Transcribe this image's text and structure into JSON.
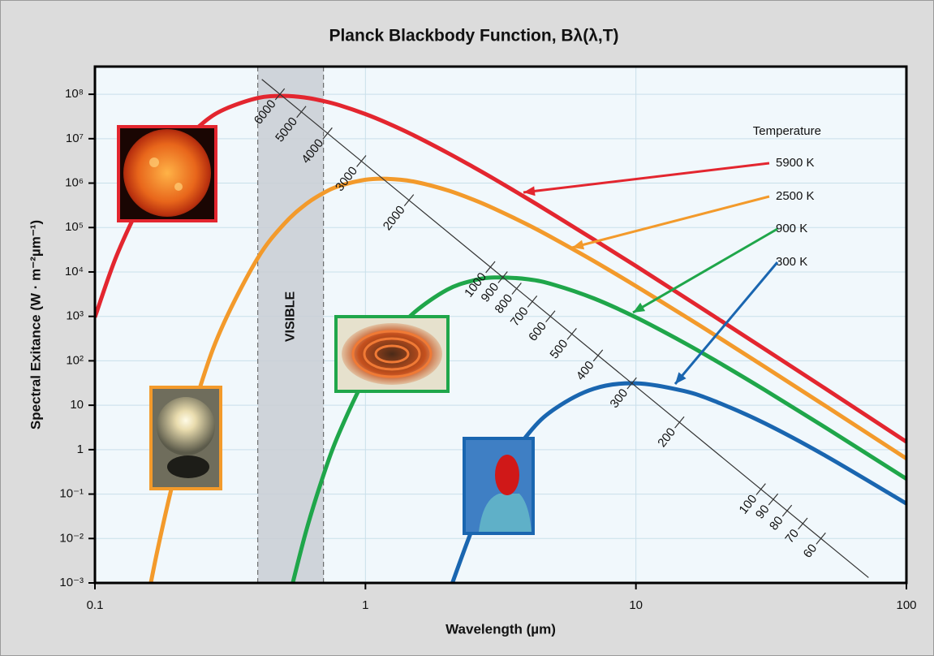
{
  "chart_data": {
    "type": "line",
    "title": "Planck Blackbody Function, Bλ(λ,T)",
    "x_label": "Wavelength (µm)",
    "y_label": "Spectral Exitance (W · m⁻²µm⁻¹)",
    "x_scale": "log",
    "y_scale": "log",
    "grid": true,
    "xlim": [
      0.1,
      100
    ],
    "ylim": [
      0.001,
      420000000
    ],
    "xticks": [
      0.1,
      1,
      10,
      100
    ],
    "yticks": [
      {
        "value": 100000000,
        "label": "10⁸"
      },
      {
        "value": 10000000,
        "label": "10⁷"
      },
      {
        "value": 1000000,
        "label": "10⁶"
      },
      {
        "value": 100000,
        "label": "10⁵"
      },
      {
        "value": 10000,
        "label": "10⁴"
      },
      {
        "value": 1000,
        "label": "10³"
      },
      {
        "value": 100,
        "label": "10²"
      },
      10,
      1,
      {
        "value": 0.1,
        "label": "10⁻¹"
      },
      {
        "value": 0.01,
        "label": "10⁻²"
      },
      {
        "value": 0.001,
        "label": "10⁻³"
      }
    ],
    "legend_title": "Temperature",
    "x": [
      0.1,
      0.12,
      0.15,
      0.17,
      0.2,
      0.25,
      0.3,
      0.4,
      0.5,
      0.6,
      0.7,
      0.8,
      1,
      1.2,
      1.5,
      2,
      2.5,
      3,
      4,
      5,
      7,
      10,
      15,
      20,
      30,
      50,
      100
    ],
    "series": [
      {
        "name": "5900 K",
        "color": "#e3262f",
        "values": [
          960,
          22500,
          427000,
          1550000,
          5940000,
          22200000,
          45400000,
          82400000,
          91900000,
          84100000,
          70400000,
          56900000,
          35800000,
          22700000,
          12100000,
          4900000,
          2320000,
          1230000,
          435000,
          190000,
          53400,
          13600,
          2790,
          901,
          182,
          24,
          1.5
        ]
      },
      {
        "name": "2500 K",
        "color": "#f39a2b",
        "values": [
          null,
          null,
          0.000107,
          0.0052,
          0.37,
          38.5,
          718,
          20600,
          120000,
          329000,
          599000,
          859000,
          1190000,
          1250000,
          1090000,
          697000,
          426000,
          265000,
          114000,
          55400,
          17500,
          4810,
          1050,
          351,
          72.8,
          9.8,
          0.63
        ]
      },
      {
        "name": "900 K",
        "color": "#1fa64a",
        "values": [
          null,
          null,
          null,
          null,
          null,
          null,
          null,
          null,
          0.00016,
          0.0129,
          0.27,
          2.39,
          42.7,
          246,
          1160,
          3950,
          6410,
          7500,
          6840,
          5100,
          2530,
          950,
          259,
          95.5,
          21.9,
          3.2,
          0.22
        ]
      },
      {
        "name": "300 K",
        "color": "#1a66b0",
        "values": [
          null,
          null,
          null,
          null,
          null,
          null,
          null,
          null,
          null,
          null,
          null,
          null,
          null,
          null,
          null,
          0.00045,
          0.018,
          0.18,
          2.27,
          8.2,
          23.6,
          31.2,
          21,
          11.7,
          3.9,
          0.74,
          0.061
        ]
      }
    ],
    "visible_band": {
      "label": "VISIBLE",
      "range": [
        0.4,
        0.7
      ]
    },
    "temperature_scale": [
      6000,
      5000,
      4000,
      3000,
      2000,
      1000,
      900,
      800,
      700,
      600,
      500,
      400,
      300,
      200,
      100,
      90,
      80,
      70,
      60
    ]
  }
}
